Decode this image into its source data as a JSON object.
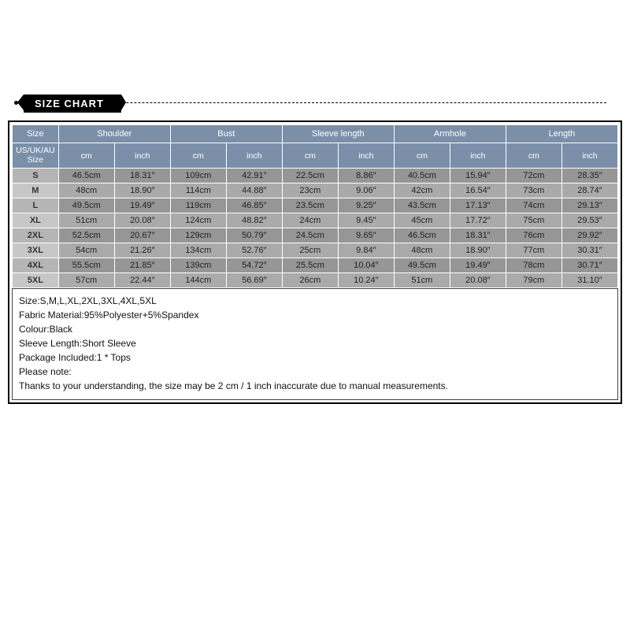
{
  "banner": {
    "label": "SIZE CHART"
  },
  "table": {
    "type": "table",
    "header_bg": "#7b8fa8",
    "size_header_bg": "#6f839c",
    "row_bg_even": "#969696",
    "row_bg_odd": "#aaaaaa",
    "size_cell_bg_even": "#b5b5b5",
    "size_cell_bg_odd": "#c7c7c7",
    "border_color": "#ffffff",
    "outer_border": "#000000",
    "columns": [
      {
        "label": "Size",
        "sub": null
      },
      {
        "label": "Shoulder",
        "sub": [
          "cm",
          "inch"
        ]
      },
      {
        "label": "Bust",
        "sub": [
          "cm",
          "inch"
        ]
      },
      {
        "label": "Sleeve length",
        "sub": [
          "cm",
          "inch"
        ]
      },
      {
        "label": "Armhole",
        "sub": [
          "cm",
          "inch"
        ]
      },
      {
        "label": "Length",
        "sub": [
          "cm",
          "inch"
        ]
      }
    ],
    "size_corner_label": "US/UK/AU Size",
    "rows": [
      {
        "size": "S",
        "values": [
          "46.5cm",
          "18.31″",
          "109cm",
          "42.91″",
          "22.5cm",
          "8.86″",
          "40.5cm",
          "15.94″",
          "72cm",
          "28.35″"
        ]
      },
      {
        "size": "M",
        "values": [
          "48cm",
          "18.90″",
          "114cm",
          "44.88″",
          "23cm",
          "9.06″",
          "42cm",
          "16.54″",
          "73cm",
          "28.74″"
        ]
      },
      {
        "size": "L",
        "values": [
          "49.5cm",
          "19.49″",
          "119cm",
          "46.85″",
          "23.5cm",
          "9.25″",
          "43.5cm",
          "17.13″",
          "74cm",
          "29.13″"
        ]
      },
      {
        "size": "XL",
        "values": [
          "51cm",
          "20.08″",
          "124cm",
          "48.82″",
          "24cm",
          "9.45″",
          "45cm",
          "17.72″",
          "75cm",
          "29.53″"
        ]
      },
      {
        "size": "2XL",
        "values": [
          "52.5cm",
          "20.67″",
          "129cm",
          "50.79″",
          "24.5cm",
          "9.65″",
          "46.5cm",
          "18.31″",
          "76cm",
          "29.92″"
        ]
      },
      {
        "size": "3XL",
        "values": [
          "54cm",
          "21.26″",
          "134cm",
          "52.76″",
          "25cm",
          "9.84″",
          "48cm",
          "18.90″",
          "77cm",
          "30.31″"
        ]
      },
      {
        "size": "4XL",
        "values": [
          "55.5cm",
          "21.85″",
          "139cm",
          "54.72″",
          "25.5cm",
          "10.04″",
          "49.5cm",
          "19.49″",
          "78cm",
          "30.71″"
        ]
      },
      {
        "size": "5XL",
        "values": [
          "57cm",
          "22.44″",
          "144cm",
          "56.69″",
          "26cm",
          "10.24″",
          "51cm",
          "20.08″",
          "79cm",
          "31.10″"
        ]
      }
    ]
  },
  "notes": {
    "lines": [
      "Size:S,M,L,XL,2XL,3XL,4XL,5XL",
      "Fabric Material:95%Polyester+5%Spandex",
      "Colour:Black",
      "Sleeve Length:Short Sleeve",
      "Package Included:1 * Tops",
      "Please note:",
      "Thanks to your understanding, the size may be 2 cm / 1 inch inaccurate due to manual measurements."
    ]
  }
}
